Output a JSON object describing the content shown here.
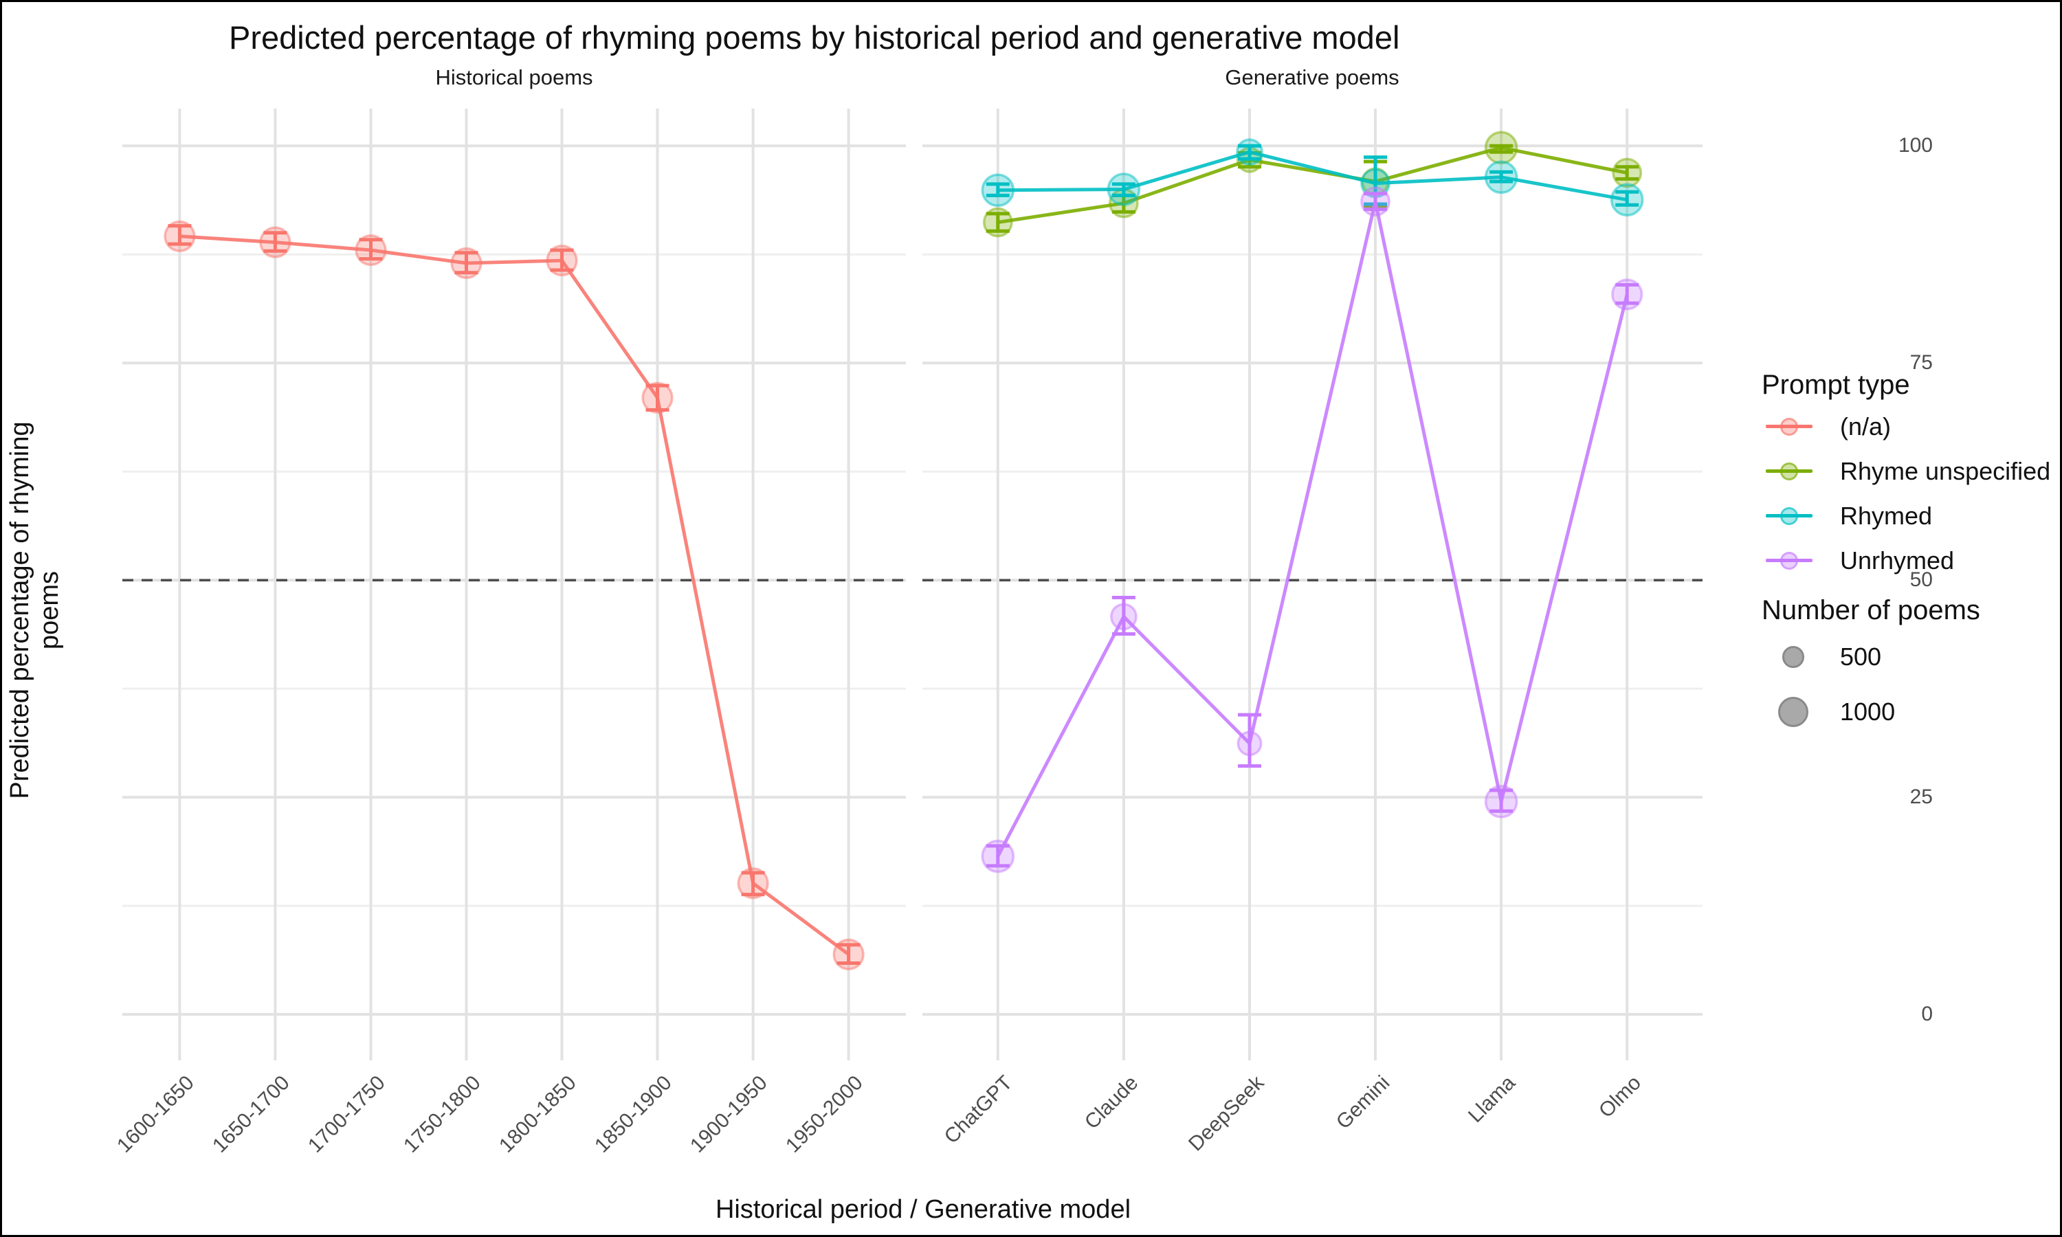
{
  "title": "Predicted percentage of rhyming poems by historical period and generative model",
  "legend": {
    "prompt_title": "Prompt type",
    "entries": [
      {
        "label": "(n/a)",
        "color": "#F8766D"
      },
      {
        "label": "Rhyme unspecified",
        "color": "#7CAE00"
      },
      {
        "label": "Rhymed",
        "color": "#00BFC4"
      },
      {
        "label": "Unrhymed",
        "color": "#C77CFF"
      }
    ],
    "size_title": "Number of poems",
    "sizes": [
      {
        "label": "500",
        "n": 500
      },
      {
        "label": "1000",
        "n": 1000
      }
    ]
  },
  "chart_data": {
    "type": "line",
    "title": "Predicted percentage of rhyming poems by historical period and generative model",
    "xlabel": "Historical period / Generative model",
    "ylabel": "Predicted percentage of rhyming poems",
    "ylim": [
      0,
      100
    ],
    "y_ticks": [
      0,
      25,
      50,
      75,
      100
    ],
    "y_minor_ticks": [
      12.5,
      37.5,
      62.5,
      87.5
    ],
    "reference_line_y": 50,
    "grid": "on",
    "legend_position": "right",
    "facets": [
      {
        "label": "Historical poems",
        "categories": [
          "1600-1650",
          "1650-1700",
          "1700-1750",
          "1750-1800",
          "1800-1850",
          "1850-1900",
          "1900-1950",
          "1950-2000"
        ],
        "series": [
          {
            "name": "(n/a)",
            "color": "#F8766D",
            "points": [
              {
                "y": 89.6,
                "lo": 88.7,
                "hi": 90.8,
                "n": 900
              },
              {
                "y": 88.9,
                "lo": 87.9,
                "hi": 90.0,
                "n": 900
              },
              {
                "y": 88.0,
                "lo": 87.0,
                "hi": 89.2,
                "n": 900
              },
              {
                "y": 86.5,
                "lo": 85.4,
                "hi": 87.7,
                "n": 900
              },
              {
                "y": 86.8,
                "lo": 85.7,
                "hi": 88.0,
                "n": 900
              },
              {
                "y": 71.0,
                "lo": 69.6,
                "hi": 72.4,
                "n": 900
              },
              {
                "y": 15.1,
                "lo": 13.8,
                "hi": 16.3,
                "n": 900
              },
              {
                "y": 6.9,
                "lo": 5.9,
                "hi": 8.0,
                "n": 900
              }
            ]
          }
        ]
      },
      {
        "label": "Generative poems",
        "categories": [
          "ChatGPT",
          "Claude",
          "DeepSeek",
          "Gemini",
          "Llama",
          "Olmo"
        ],
        "series": [
          {
            "name": "Rhyme unspecified",
            "color": "#7CAE00",
            "points": [
              {
                "y": 91.2,
                "lo": 90.2,
                "hi": 92.2,
                "n": 800
              },
              {
                "y": 93.4,
                "lo": 92.4,
                "hi": 94.3,
                "n": 800
              },
              {
                "y": 98.4,
                "lo": 97.6,
                "hi": 99.2,
                "n": 600
              },
              {
                "y": 95.9,
                "lo": 93.0,
                "hi": 98.2,
                "n": 700
              },
              {
                "y": 99.8,
                "lo": 99.3,
                "hi": 100.0,
                "n": 1000
              },
              {
                "y": 96.9,
                "lo": 96.2,
                "hi": 97.6,
                "n": 800
              }
            ]
          },
          {
            "name": "Rhymed",
            "color": "#00BFC4",
            "points": [
              {
                "y": 94.9,
                "lo": 94.3,
                "hi": 95.6,
                "n": 1000
              },
              {
                "y": 95.0,
                "lo": 94.3,
                "hi": 95.6,
                "n": 1000
              },
              {
                "y": 99.3,
                "lo": 98.5,
                "hi": 100.0,
                "n": 650
              },
              {
                "y": 95.7,
                "lo": 93.3,
                "hi": 98.7,
                "n": 800
              },
              {
                "y": 96.4,
                "lo": 95.9,
                "hi": 97.0,
                "n": 1000
              },
              {
                "y": 93.8,
                "lo": 93.2,
                "hi": 94.7,
                "n": 1000
              }
            ]
          },
          {
            "name": "Unrhymed",
            "color": "#C77CFF",
            "points": [
              {
                "y": 18.2,
                "lo": 17.1,
                "hi": 19.4,
                "n": 1000
              },
              {
                "y": 45.8,
                "lo": 43.8,
                "hi": 48.0,
                "n": 650
              },
              {
                "y": 31.2,
                "lo": 28.6,
                "hi": 34.5,
                "n": 550
              },
              {
                "y": 93.6,
                "lo": 92.7,
                "hi": 94.5,
                "n": 800
              },
              {
                "y": 24.5,
                "lo": 23.4,
                "hi": 25.8,
                "n": 1000
              },
              {
                "y": 82.9,
                "lo": 81.9,
                "hi": 84.0,
                "n": 900
              }
            ]
          }
        ]
      }
    ]
  }
}
